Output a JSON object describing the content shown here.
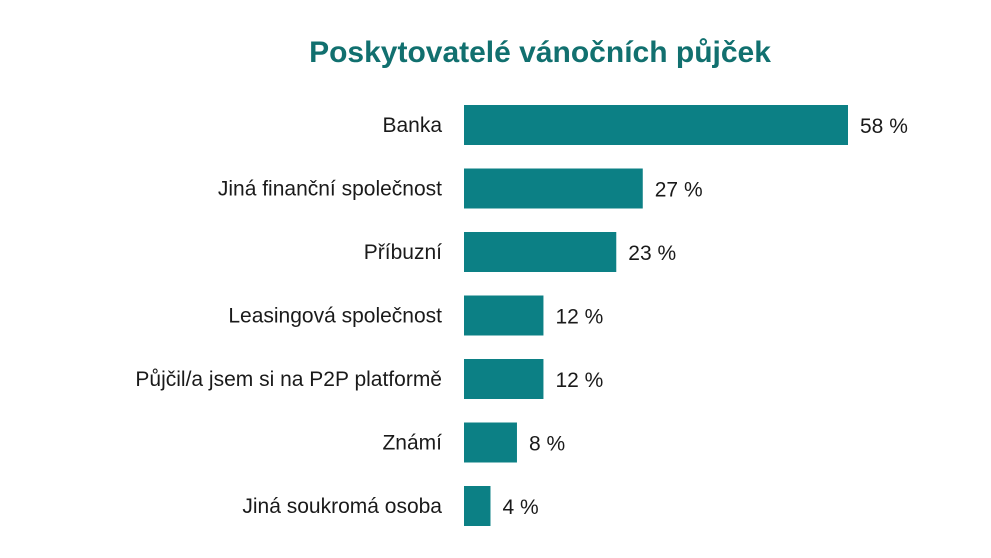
{
  "chart_data": {
    "type": "bar",
    "orientation": "horizontal",
    "title": "Poskytovatelé vánočních půjček",
    "xlabel": "",
    "ylabel": "",
    "categories": [
      "Banka",
      "Jiná finanční společnost",
      "Příbuzní",
      "Leasingová společnost",
      "Půjčil/a jsem si na P2P platformě",
      "Známí",
      "Jiná soukromá osoba"
    ],
    "values": [
      58,
      27,
      23,
      12,
      12,
      8,
      4
    ],
    "value_labels": [
      "58 %",
      "27 %",
      "23 %",
      "12 %",
      "12 %",
      "8 %",
      "4 %"
    ],
    "xlim": [
      0,
      58
    ],
    "grid": false,
    "legend": "none",
    "colors": {
      "bar": "#0c8085",
      "title": "#11706f",
      "text": "#1a1a1a"
    }
  }
}
